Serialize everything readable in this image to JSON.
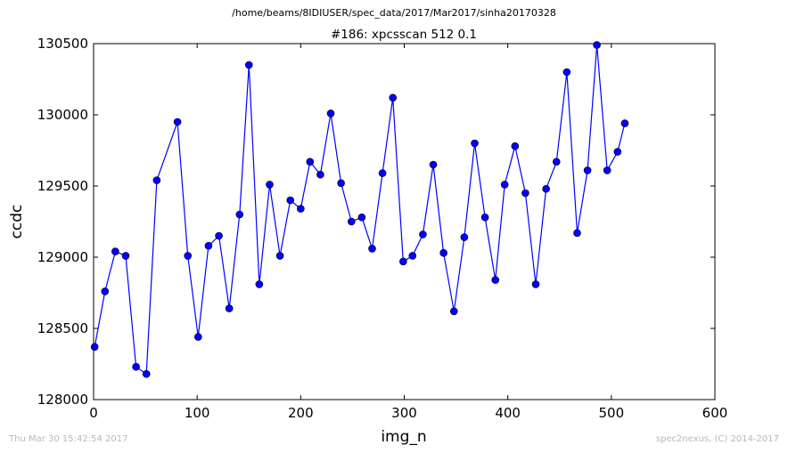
{
  "figure": {
    "suptitle": "/home/beams/8IDIUSER/spec_data/2017/Mar2017/sinha20170328",
    "footer_left": "Thu Mar 30 15:42:54 2017",
    "footer_right": "spec2nexus, (C) 2014-2017"
  },
  "chart_data": {
    "type": "line",
    "title": "#186: xpcsscan 512 0.1",
    "xlabel": "img_n",
    "ylabel": "ccdc",
    "xlim": [
      0,
      600
    ],
    "ylim": [
      128000,
      130500
    ],
    "xticks": [
      0,
      100,
      200,
      300,
      400,
      500,
      600
    ],
    "yticks": [
      128000,
      128500,
      129000,
      129500,
      130000,
      130500
    ],
    "grid": false,
    "marker": "circle",
    "line_color": "#0000ff",
    "marker_color": "#0000ff",
    "series": [
      {
        "x": [
          1,
          11,
          21,
          31,
          41,
          51,
          61,
          81,
          91,
          101,
          111,
          121,
          131,
          141,
          150,
          160,
          170,
          180,
          190,
          200,
          209,
          219,
          229,
          239,
          249,
          259,
          269,
          279,
          289,
          299,
          308,
          318,
          328,
          338,
          348,
          358,
          368,
          378,
          388,
          397,
          407,
          417,
          427,
          437,
          447,
          457,
          467,
          477,
          486,
          496,
          506,
          513
        ],
        "y": [
          128370,
          128760,
          129040,
          129010,
          128230,
          128180,
          129540,
          129950,
          129010,
          128440,
          129080,
          129150,
          128640,
          129300,
          130350,
          128810,
          129510,
          129010,
          129400,
          129340,
          129670,
          129580,
          130010,
          129520,
          129250,
          129280,
          129060,
          129590,
          130120,
          128970,
          129010,
          129160,
          129650,
          129030,
          128620,
          129140,
          129800,
          129280,
          128840,
          129510,
          129780,
          129450,
          128810,
          129480,
          129670,
          130300,
          129170,
          129610,
          130490,
          129610,
          129740,
          129940
        ]
      }
    ]
  }
}
